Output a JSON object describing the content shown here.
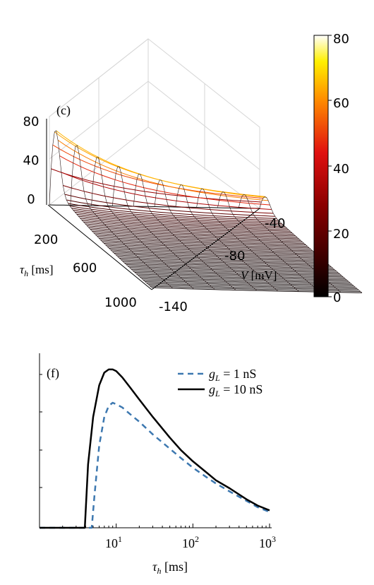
{
  "panel_c": {
    "label": "(c)",
    "z_ticks": [
      "80",
      "40",
      "0"
    ],
    "tau_ticks": [
      "200",
      "600",
      "1000"
    ],
    "v_ticks": [
      "-40",
      "-80",
      "-140"
    ],
    "tau_label_sym": "τ",
    "tau_label_sub": "h",
    "tau_label_unit": " [ms]",
    "v_label_sym": "V",
    "v_label_unit": " [mV]",
    "colorbar_ticks": [
      "80",
      "60",
      "40",
      "20",
      "0"
    ]
  },
  "panel_f": {
    "label": "(f)",
    "legend": [
      {
        "sym": "g",
        "sub": "L",
        "text": " = 1 nS"
      },
      {
        "sym": "g",
        "sub": "L",
        "text": " = 10 nS"
      }
    ],
    "x_ticks": [
      {
        "base": "10",
        "exp": "1"
      },
      {
        "base": "10",
        "exp": "2"
      },
      {
        "base": "10",
        "exp": "3"
      }
    ],
    "xlabel_sym": "τ",
    "xlabel_sub": "h",
    "xlabel_unit": " [ms]"
  },
  "colors": {
    "dashed_series": "#3d78b0",
    "solid_series": "#000000",
    "axis": "#000000",
    "grid": "#d6d6d6"
  },
  "chart_data": [
    {
      "type": "surface",
      "panel": "c",
      "x_axis": "tau_h [ms]",
      "y_axis": "V [mV]",
      "x_ticks": [
        200,
        600,
        1000
      ],
      "y_ticks": [
        -40,
        -80,
        -140
      ],
      "z_ticks": [
        0,
        40,
        80
      ],
      "zlim": [
        0,
        80
      ],
      "colorbar": {
        "colormap": "hot",
        "range": [
          0,
          80
        ],
        "ticks": [
          0,
          20,
          40,
          60,
          80
        ]
      },
      "peak": {
        "tau_h": 30,
        "V": -140,
        "z": 78
      }
    },
    {
      "type": "line",
      "panel": "f",
      "xscale": "log",
      "xlim": [
        1,
        1000
      ],
      "ylim": [
        0,
        1.08
      ],
      "series": [
        {
          "name": "g_L = 1 nS",
          "style": "dashed",
          "x": [
            1,
            4.8,
            5.2,
            6,
            7,
            8,
            9,
            10,
            12,
            15,
            20,
            30,
            50,
            70,
            100,
            150,
            200,
            300,
            500,
            700,
            1000
          ],
          "y": [
            0,
            0,
            0.2,
            0.52,
            0.7,
            0.77,
            0.79,
            0.78,
            0.76,
            0.72,
            0.67,
            0.59,
            0.5,
            0.44,
            0.38,
            0.32,
            0.28,
            0.23,
            0.17,
            0.13,
            0.1
          ]
        },
        {
          "name": "g_L = 10 nS",
          "style": "solid",
          "x": [
            1,
            3.9,
            4.3,
            5,
            6,
            7,
            8,
            9,
            10,
            12,
            15,
            20,
            30,
            50,
            70,
            100,
            150,
            200,
            300,
            500,
            700,
            1000
          ],
          "y": [
            0,
            0,
            0.4,
            0.7,
            0.9,
            0.98,
            1.0,
            1.0,
            0.99,
            0.95,
            0.89,
            0.81,
            0.7,
            0.57,
            0.49,
            0.42,
            0.35,
            0.3,
            0.25,
            0.18,
            0.14,
            0.11
          ]
        }
      ]
    }
  ]
}
